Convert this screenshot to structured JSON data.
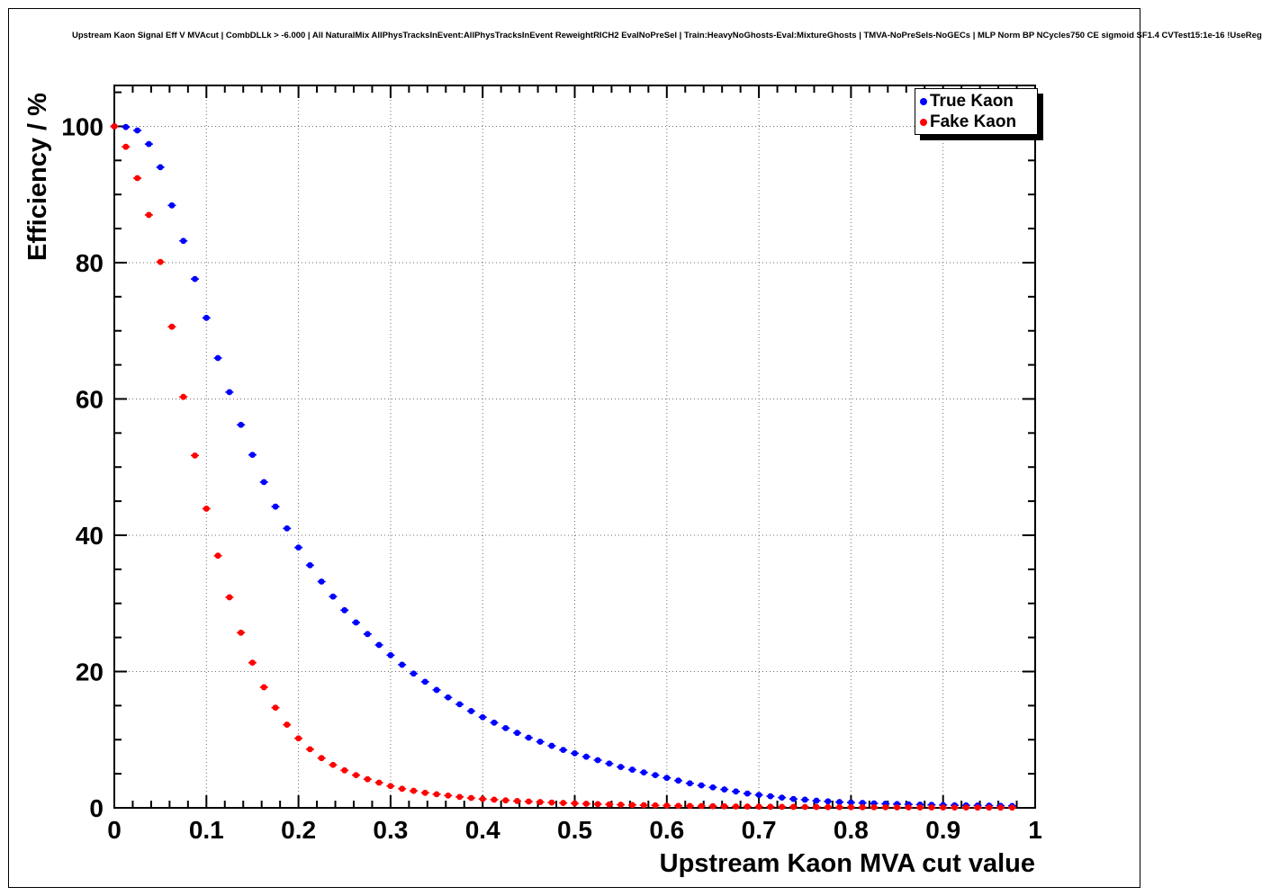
{
  "title": "Upstream Kaon Signal Eff V MVAcut | CombDLLk > -6.000 | All NaturalMix AllPhysTracksInEvent:AllPhysTracksInEvent ReweightRICH2 EvalNoPreSel | Train:HeavyNoGhosts-Eval:MixtureGhosts | TMVA-NoPreSels-NoGECs | MLP Norm BP NCycles750 CE sigmoid SF1.4 CVTest15:1e-16 !UseReg",
  "legend": {
    "position": "top-right",
    "entries": [
      {
        "label": "True Kaon",
        "color": "#0000ff"
      },
      {
        "label": "Fake Kaon",
        "color": "#ff0000"
      }
    ]
  },
  "axes": {
    "xlabel": "Upstream Kaon MVA cut value",
    "ylabel": "Efficiency / %"
  },
  "chart_data": {
    "type": "scatter",
    "title": "Upstream Kaon Signal Eff V MVAcut | CombDLLk > -6.000 | All NaturalMix AllPhysTracksInEvent:AllPhysTracksInEvent ReweightRICH2 EvalNoPreSel | Train:HeavyNoGhosts-Eval:MixtureGhosts | TMVA-NoPreSels-NoGECs | MLP Norm BP NCycles750 CE sigmoid SF1.4 CVTest15:1e-16 !UseReg",
    "xlabel": "Upstream Kaon MVA cut value",
    "ylabel": "Efficiency / %",
    "xlim": [
      0,
      1
    ],
    "ylim": [
      0,
      106
    ],
    "grid": true,
    "grid_style": "dotted",
    "legend_position": "top-right",
    "marker": "filled-circle",
    "xticks": {
      "values": [
        0,
        0.1,
        0.2,
        0.3,
        0.4,
        0.5,
        0.6,
        0.7,
        0.8,
        0.9,
        1
      ],
      "labels": [
        "0",
        "0.1",
        "0.2",
        "0.3",
        "0.4",
        "0.5",
        "0.6",
        "0.7",
        "0.8",
        "0.9",
        "1"
      ]
    },
    "yticks": {
      "values": [
        0,
        20,
        40,
        60,
        80,
        100
      ],
      "labels": [
        "0",
        "20",
        "40",
        "60",
        "80",
        "100"
      ]
    },
    "x": [
      0,
      0.0125,
      0.025,
      0.0375,
      0.05,
      0.0625,
      0.075,
      0.0875,
      0.1,
      0.1125,
      0.125,
      0.1375,
      0.15,
      0.1625,
      0.175,
      0.1875,
      0.2,
      0.2125,
      0.225,
      0.2375,
      0.25,
      0.2625,
      0.275,
      0.2875,
      0.3,
      0.3125,
      0.325,
      0.3375,
      0.35,
      0.3625,
      0.375,
      0.3875,
      0.4,
      0.4125,
      0.425,
      0.4375,
      0.45,
      0.4625,
      0.475,
      0.4875,
      0.5,
      0.5125,
      0.525,
      0.5375,
      0.55,
      0.5625,
      0.575,
      0.5875,
      0.6,
      0.6125,
      0.625,
      0.6375,
      0.65,
      0.6625,
      0.675,
      0.6875,
      0.7,
      0.7125,
      0.725,
      0.7375,
      0.75,
      0.7625,
      0.775,
      0.7875,
      0.8,
      0.8125,
      0.825,
      0.8375,
      0.85,
      0.8625,
      0.875,
      0.8875,
      0.9,
      0.9125,
      0.925,
      0.9375,
      0.95,
      0.9625,
      0.975
    ],
    "series": [
      {
        "name": "True Kaon",
        "color": "#0000ff",
        "values": [
          100,
          99.9,
          99.4,
          97.4,
          94.0,
          88.4,
          83.2,
          77.6,
          71.9,
          66.0,
          61.0,
          56.2,
          51.8,
          47.8,
          44.2,
          41.0,
          38.2,
          35.6,
          33.2,
          31.0,
          29.0,
          27.2,
          25.5,
          23.9,
          22.4,
          21.0,
          19.7,
          18.5,
          17.3,
          16.2,
          15.2,
          14.2,
          13.3,
          12.5,
          11.7,
          11.0,
          10.3,
          9.7,
          9.1,
          8.5,
          8.0,
          7.5,
          7.0,
          6.5,
          6.0,
          5.6,
          5.2,
          4.8,
          4.4,
          4.0,
          3.6,
          3.3,
          3.0,
          2.7,
          2.4,
          2.1,
          1.9,
          1.7,
          1.5,
          1.3,
          1.2,
          1.05,
          0.95,
          0.85,
          0.78,
          0.72,
          0.66,
          0.6,
          0.55,
          0.5,
          0.47,
          0.44,
          0.41,
          0.38,
          0.36,
          0.34,
          0.32,
          0.3,
          0.28
        ]
      },
      {
        "name": "Fake Kaon",
        "color": "#ff0000",
        "values": [
          100,
          97.0,
          92.4,
          87.0,
          80.1,
          70.6,
          60.3,
          51.7,
          43.9,
          37.0,
          30.9,
          25.7,
          21.3,
          17.7,
          14.7,
          12.2,
          10.2,
          8.6,
          7.3,
          6.3,
          5.5,
          4.8,
          4.2,
          3.7,
          3.2,
          2.8,
          2.5,
          2.2,
          2.0,
          1.8,
          1.6,
          1.45,
          1.3,
          1.2,
          1.1,
          1.0,
          0.92,
          0.85,
          0.78,
          0.72,
          0.66,
          0.6,
          0.55,
          0.5,
          0.46,
          0.42,
          0.39,
          0.36,
          0.33,
          0.3,
          0.28,
          0.26,
          0.24,
          0.22,
          0.2,
          0.19,
          0.17,
          0.16,
          0.15,
          0.14,
          0.13,
          0.12,
          0.11,
          0.1,
          0.1,
          0.09,
          0.08,
          0.08,
          0.07,
          0.07,
          0.06,
          0.06,
          0.05,
          0.05,
          0.05,
          0.04,
          0.04,
          0.04,
          0.03
        ]
      }
    ]
  }
}
